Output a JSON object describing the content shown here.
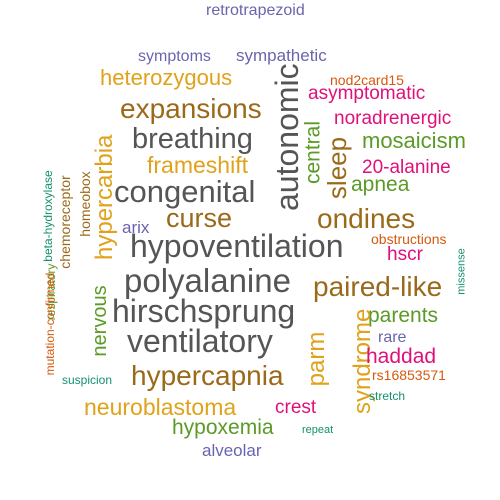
{
  "colors": {
    "gray": "#555555",
    "brown": "#9a6a1a",
    "orange": "#e0a21a",
    "green": "#5a9a26",
    "magenta": "#e0107a",
    "purple": "#6a64ae",
    "teal": "#16906e",
    "rust": "#d45a10"
  },
  "words": [
    "retrotrapezoid",
    "symptoms",
    "sympathetic",
    "heterozygous",
    "autonomic",
    "nod2card15",
    "asymptomatic",
    "expansions",
    "noradrenergic",
    "breathing",
    "central",
    "mosaicism",
    "frameshift",
    "sleep",
    "20-alanine",
    "congenital",
    "apnea",
    "beta-hydroxylase",
    "chemoreceptor",
    "homeobox",
    "hypercarbia",
    "curse",
    "ondines",
    "arix",
    "obstructions",
    "hypoventilation",
    "hscr",
    "respiratory",
    "polyalanine",
    "paired-like",
    "missense",
    "nervous",
    "hirschsprung",
    "mutation-confirmed",
    "parents",
    "syndrome",
    "ventilatory",
    "rare",
    "parm",
    "haddad",
    "hypercapnia",
    "suspicion",
    "rs16853571",
    "stretch",
    "neuroblastoma",
    "crest",
    "hypoxemia",
    "repeat",
    "alveolar"
  ]
}
